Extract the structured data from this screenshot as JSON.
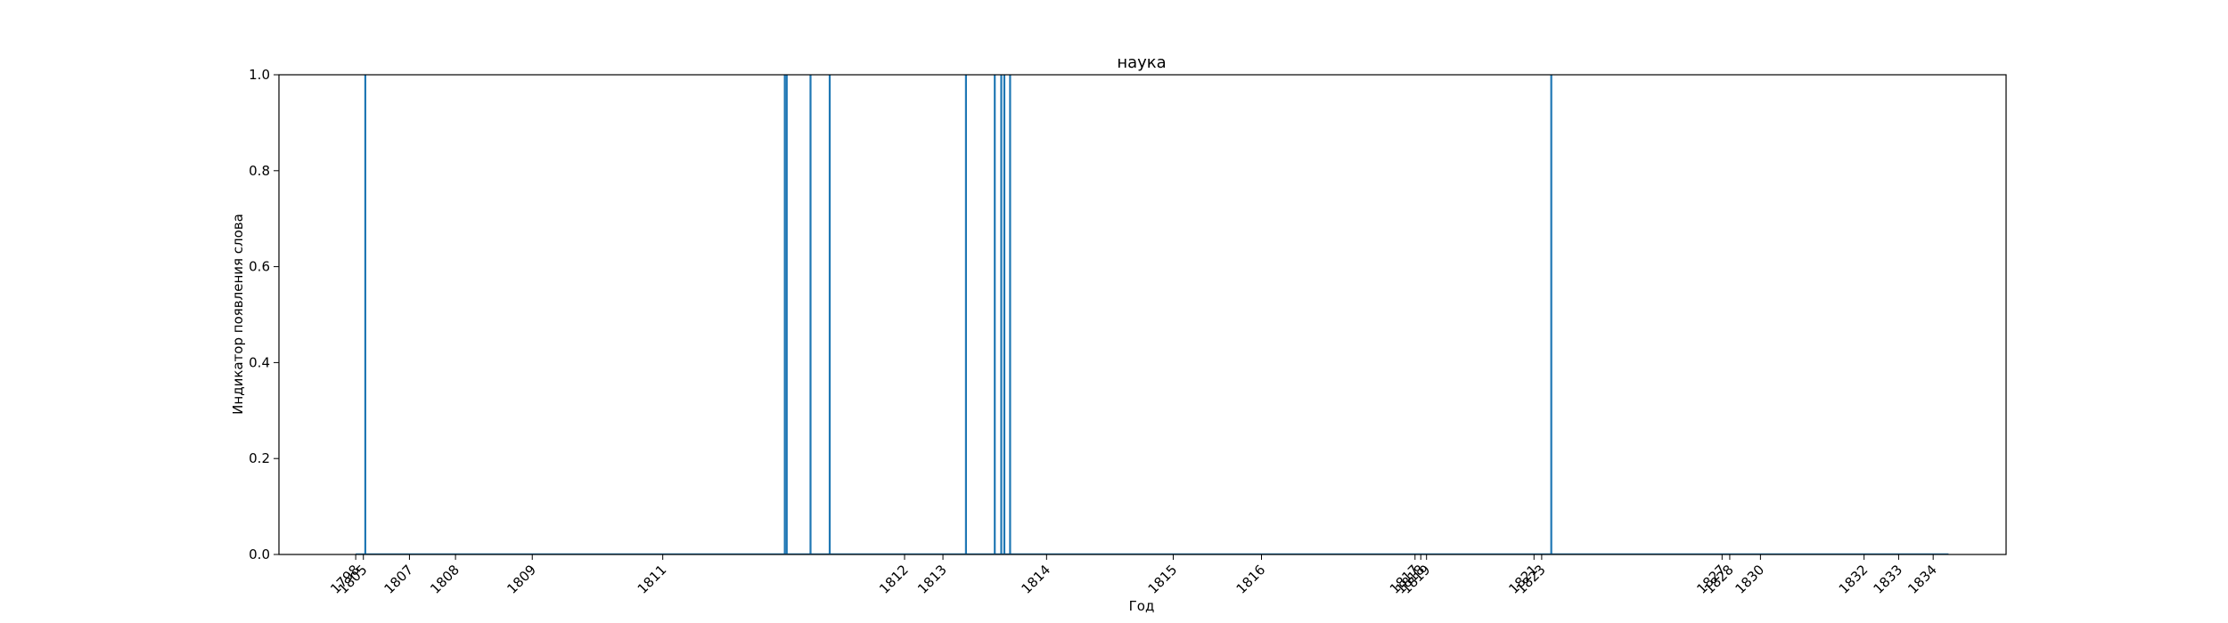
{
  "chart_data": {
    "type": "bar",
    "title": "наука",
    "xlabel": "Год",
    "ylabel": "Индикатор появления слова",
    "ylim": [
      0,
      1
    ],
    "yticks": [
      "0.0",
      "0.2",
      "0.4",
      "0.6",
      "0.8",
      "1.0"
    ],
    "x_ticks": [
      {
        "label": "1798",
        "pos": 1.3
      },
      {
        "label": "1805",
        "pos": 1.5
      },
      {
        "label": "1807",
        "pos": 2.7
      },
      {
        "label": "1808",
        "pos": 3.9
      },
      {
        "label": "1809",
        "pos": 5.9
      },
      {
        "label": "1811",
        "pos": 9.3
      },
      {
        "label": "1812",
        "pos": 15.6
      },
      {
        "label": "1813",
        "pos": 16.6
      },
      {
        "label": "1814",
        "pos": 19.3
      },
      {
        "label": "1815",
        "pos": 22.6
      },
      {
        "label": "1816",
        "pos": 24.9
      },
      {
        "label": "1817",
        "pos": 28.9
      },
      {
        "label": "1818",
        "pos": 29.05
      },
      {
        "label": "1819",
        "pos": 29.2
      },
      {
        "label": "1821",
        "pos": 32.0
      },
      {
        "label": "1823",
        "pos": 32.2
      },
      {
        "label": "1827",
        "pos": 36.9
      },
      {
        "label": "1828",
        "pos": 37.1
      },
      {
        "label": "1830",
        "pos": 37.9
      },
      {
        "label": "1832",
        "pos": 40.6
      },
      {
        "label": "1833",
        "pos": 41.5
      },
      {
        "label": "1834",
        "pos": 42.4
      }
    ],
    "x_range": [
      -0.7,
      44.3
    ],
    "events": [
      {
        "pos": 1.55,
        "value": 1
      },
      {
        "pos": 12.48,
        "value": 1
      },
      {
        "pos": 12.53,
        "value": 1
      },
      {
        "pos": 13.15,
        "value": 1
      },
      {
        "pos": 13.65,
        "value": 1
      },
      {
        "pos": 17.2,
        "value": 1
      },
      {
        "pos": 17.95,
        "value": 1
      },
      {
        "pos": 18.12,
        "value": 1
      },
      {
        "pos": 18.2,
        "value": 1
      },
      {
        "pos": 18.35,
        "value": 1
      },
      {
        "pos": 32.45,
        "value": 1
      }
    ],
    "baseline_span": [
      1.3,
      42.8
    ],
    "series_color": "#1f77b4",
    "grid": false
  }
}
